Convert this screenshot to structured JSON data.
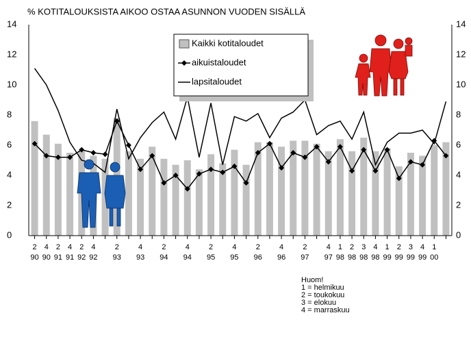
{
  "chart_data": {
    "type": "bar",
    "title": "% KOTITALOUKSISTA AIKOO OSTAA ASUNNON VUODEN SISÄLLÄ",
    "categories": [
      [
        "2",
        "90"
      ],
      [
        "4",
        "90"
      ],
      [
        "2",
        "91"
      ],
      [
        "4",
        "91"
      ],
      [
        "2",
        "92"
      ],
      [
        "4",
        "92"
      ],
      null,
      [
        "2",
        "93"
      ],
      null,
      [
        "4",
        "93"
      ],
      null,
      [
        "2",
        "94"
      ],
      null,
      [
        "4",
        "94"
      ],
      null,
      [
        "2",
        "95"
      ],
      null,
      [
        "4",
        "95"
      ],
      null,
      [
        "2",
        "96"
      ],
      null,
      [
        "4",
        "96"
      ],
      null,
      [
        "2",
        "97"
      ],
      null,
      [
        "4",
        "97"
      ],
      [
        "1",
        "98"
      ],
      [
        "2",
        "98"
      ],
      [
        "3",
        "98"
      ],
      [
        "4",
        "98"
      ],
      [
        "1",
        "99"
      ],
      [
        "2",
        "99"
      ],
      [
        "3",
        "99"
      ],
      [
        "4",
        "99"
      ],
      [
        "1",
        "00"
      ],
      null
    ],
    "series": [
      {
        "name": "Kaikki kotitaloudet",
        "type": "bar",
        "color": "#c0c0c0",
        "values": [
          7.6,
          6.7,
          6.1,
          5.5,
          5.6,
          5.3,
          5.1,
          7.8,
          5.6,
          5.1,
          5.9,
          5.1,
          4.7,
          5.0,
          4.4,
          5.4,
          4.8,
          5.7,
          4.7,
          6.2,
          6.2,
          5.9,
          6.3,
          6.3,
          6.1,
          5.6,
          6.4,
          5.6,
          6.5,
          5.6,
          5.8,
          4.6,
          5.5,
          5.3,
          6.0,
          6.2
        ]
      },
      {
        "name": "aikuistaloudet",
        "type": "line",
        "marker": "diamond",
        "color": "#000000",
        "values": [
          6.1,
          5.3,
          5.2,
          5.2,
          5.7,
          5.5,
          5.4,
          7.6,
          6.0,
          4.4,
          5.3,
          3.5,
          4.0,
          3.1,
          4.1,
          4.4,
          4.2,
          4.6,
          3.5,
          5.5,
          6.1,
          4.5,
          5.5,
          5.2,
          5.9,
          4.9,
          5.9,
          4.3,
          5.7,
          4.3,
          5.7,
          3.8,
          4.9,
          4.7,
          6.3,
          5.3
        ]
      },
      {
        "name": "lapsitaloudet",
        "type": "line",
        "color": "#000000",
        "values": [
          11.1,
          10.0,
          8.3,
          6.2,
          5.0,
          4.8,
          4.2,
          8.4,
          5.1,
          6.5,
          7.5,
          8.2,
          6.4,
          9.2,
          5.2,
          8.8,
          4.7,
          7.9,
          7.6,
          8.1,
          6.5,
          7.8,
          8.2,
          9.0,
          6.7,
          7.3,
          7.6,
          6.4,
          8.2,
          4.7,
          6.2,
          6.8,
          6.8,
          7.0,
          6.1,
          8.9
        ]
      }
    ],
    "ylim": [
      0,
      14
    ],
    "yticks": [
      0,
      2,
      4,
      6,
      8,
      10,
      12,
      14
    ],
    "grid": true,
    "legend": "upper center",
    "note": [
      "Huom!",
      "1 = helmikuu",
      "2 = toukokuu",
      "3 = elokuu",
      "4 = marraskuu"
    ]
  }
}
